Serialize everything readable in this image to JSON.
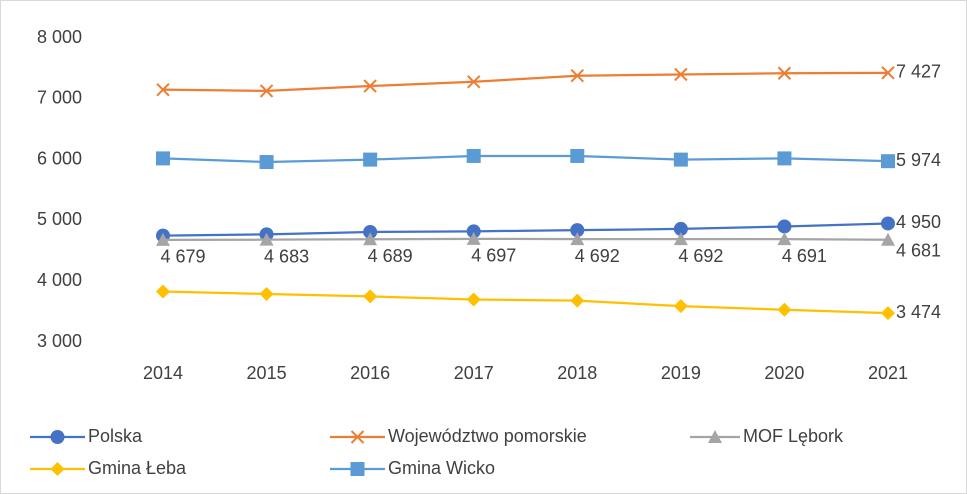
{
  "chart_data": {
    "type": "line",
    "categories": [
      "2014",
      "2015",
      "2016",
      "2017",
      "2018",
      "2019",
      "2020",
      "2021"
    ],
    "ylim": [
      3000,
      8000
    ],
    "yticks": [
      {
        "value": 3000,
        "label": "3 000"
      },
      {
        "value": 4000,
        "label": "4 000"
      },
      {
        "value": 5000,
        "label": "5 000"
      },
      {
        "value": 6000,
        "label": "6 000"
      },
      {
        "value": 7000,
        "label": "7 000"
      },
      {
        "value": 8000,
        "label": "8 000"
      }
    ],
    "grid": false,
    "legend": "bottom",
    "series": [
      {
        "name": "Polska",
        "color": "#4472c4",
        "marker": "circle",
        "values": [
          4750,
          4770,
          4810,
          4820,
          4840,
          4860,
          4900,
          4950
        ],
        "value_labels": [
          null,
          null,
          null,
          null,
          null,
          null,
          null,
          "4 950"
        ]
      },
      {
        "name": "Województwo pomorskie",
        "color": "#ed7d31",
        "marker": "x",
        "values": [
          7150,
          7130,
          7210,
          7280,
          7380,
          7400,
          7420,
          7427
        ],
        "value_labels": [
          null,
          null,
          null,
          null,
          null,
          null,
          null,
          "7 427"
        ]
      },
      {
        "name": "MOF Lębork",
        "color": "#a5a5a5",
        "marker": "triangle",
        "values": [
          4679,
          4683,
          4689,
          4697,
          4692,
          4692,
          4691,
          4681
        ],
        "value_labels": [
          "4 679",
          "4 683",
          "4 689",
          "4 697",
          "4 692",
          "4 692",
          "4 691",
          "4 681"
        ]
      },
      {
        "name": "Gmina Łeba",
        "color": "#ffc000",
        "marker": "diamond",
        "values": [
          3830,
          3790,
          3750,
          3700,
          3680,
          3590,
          3530,
          3474
        ],
        "value_labels": [
          null,
          null,
          null,
          null,
          null,
          null,
          null,
          "3 474"
        ]
      },
      {
        "name": "Gmina Wicko",
        "color": "#5b9bd5",
        "marker": "square",
        "values": [
          6020,
          5960,
          6000,
          6060,
          6060,
          6000,
          6020,
          5974
        ],
        "value_labels": [
          null,
          null,
          null,
          null,
          null,
          null,
          null,
          "5 974"
        ]
      }
    ]
  }
}
